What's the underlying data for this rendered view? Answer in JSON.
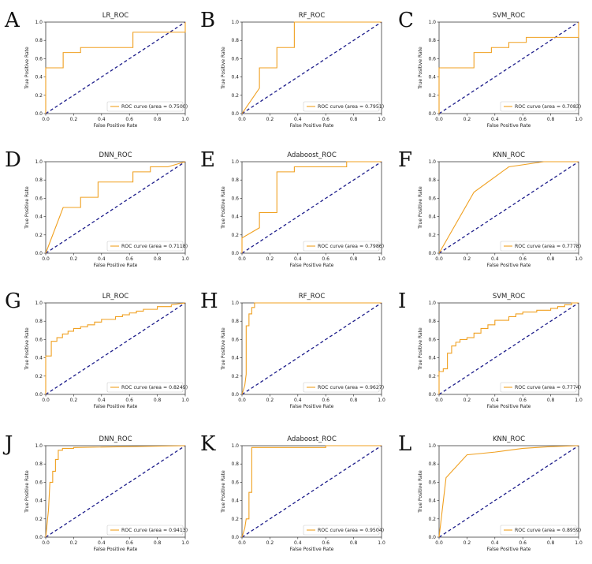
{
  "chart_data": [
    {
      "panel": "A",
      "type": "line",
      "title": "LR_ROC",
      "xlabel": "False Positive Rate",
      "ylabel": "True Positive Rate",
      "xlim": [
        0,
        1
      ],
      "ylim": [
        0,
        1
      ],
      "legend": "ROC curve (area = 0.7500)",
      "legend_position": "lower-right",
      "x": [
        0,
        0,
        0.125,
        0.125,
        0.25,
        0.25,
        0.625,
        0.625,
        1,
        1
      ],
      "y": [
        0,
        0.5,
        0.5,
        0.667,
        0.667,
        0.722,
        0.722,
        0.889,
        0.889,
        1
      ]
    },
    {
      "panel": "B",
      "type": "line",
      "title": "RF_ROC",
      "xlabel": "False Positive Rate",
      "ylabel": "True Positive Rate",
      "xlim": [
        0,
        1
      ],
      "ylim": [
        0,
        1
      ],
      "legend": "ROC curve (area = 0.7951)",
      "legend_position": "lower-right",
      "x": [
        0,
        0.125,
        0.125,
        0.25,
        0.25,
        0.375,
        0.375,
        1
      ],
      "y": [
        0,
        0.278,
        0.5,
        0.5,
        0.722,
        0.722,
        1,
        1
      ]
    },
    {
      "panel": "C",
      "type": "line",
      "title": "SVM_ROC",
      "xlabel": "False Positive Rate",
      "ylabel": "True Positive Rate",
      "xlim": [
        0,
        1
      ],
      "ylim": [
        0,
        1
      ],
      "legend": "ROC curve (area = 0.7083)",
      "legend_position": "lower-right",
      "x": [
        0,
        0,
        0.25,
        0.25,
        0.375,
        0.375,
        0.5,
        0.5,
        0.625,
        0.625,
        1,
        1
      ],
      "y": [
        0,
        0.5,
        0.5,
        0.667,
        0.667,
        0.722,
        0.722,
        0.778,
        0.778,
        0.833,
        0.833,
        1
      ]
    },
    {
      "panel": "D",
      "type": "line",
      "title": "DNN_ROC",
      "xlabel": "False Positive Rate",
      "ylabel": "True Positive Rate",
      "xlim": [
        0,
        1
      ],
      "ylim": [
        0,
        1
      ],
      "legend": "ROC curve (area = 0.7118)",
      "legend_position": "lower-right",
      "x": [
        0,
        0.125,
        0.25,
        0.25,
        0.375,
        0.375,
        0.625,
        0.625,
        0.75,
        0.75,
        0.875,
        0.875,
        1
      ],
      "y": [
        0,
        0.5,
        0.5,
        0.611,
        0.611,
        0.778,
        0.778,
        0.889,
        0.889,
        0.944,
        0.944,
        0.944,
        1
      ]
    },
    {
      "panel": "E",
      "type": "line",
      "title": "Adaboost_ROC",
      "xlabel": "False Positive Rate",
      "ylabel": "True Positive Rate",
      "xlim": [
        0,
        1
      ],
      "ylim": [
        0,
        1
      ],
      "legend": "ROC curve (area = 0.7986)",
      "legend_position": "lower-right",
      "x": [
        0,
        0,
        0.125,
        0.125,
        0.25,
        0.25,
        0.375,
        0.375,
        0.75,
        0.75,
        1
      ],
      "y": [
        0,
        0.167,
        0.278,
        0.444,
        0.444,
        0.889,
        0.889,
        0.944,
        0.944,
        1,
        1
      ]
    },
    {
      "panel": "F",
      "type": "line",
      "title": "KNN_ROC",
      "xlabel": "False Positive Rate",
      "ylabel": "True Positive Rate",
      "xlim": [
        0,
        1
      ],
      "ylim": [
        0,
        1
      ],
      "legend": "ROC curve (area = 0.7778)",
      "legend_position": "lower-right",
      "x": [
        0,
        0.25,
        0.5,
        0.75,
        1
      ],
      "y": [
        0,
        0.667,
        0.944,
        1,
        1
      ]
    },
    {
      "panel": "G",
      "type": "line",
      "title": "LR_ROC",
      "xlabel": "False Positive Rate",
      "ylabel": "True Positive Rate",
      "xlim": [
        0,
        1
      ],
      "ylim": [
        0,
        1
      ],
      "legend": "ROC curve (area = 0.8249)",
      "legend_position": "lower-right",
      "x": [
        0,
        0,
        0.04,
        0.04,
        0.08,
        0.08,
        0.12,
        0.12,
        0.16,
        0.16,
        0.2,
        0.2,
        0.25,
        0.25,
        0.3,
        0.3,
        0.35,
        0.35,
        0.4,
        0.4,
        0.5,
        0.5,
        0.55,
        0.55,
        0.6,
        0.6,
        0.65,
        0.65,
        0.7,
        0.7,
        0.8,
        0.8,
        0.9,
        0.9,
        1
      ],
      "y": [
        0,
        0.42,
        0.42,
        0.58,
        0.58,
        0.62,
        0.62,
        0.66,
        0.66,
        0.69,
        0.69,
        0.72,
        0.72,
        0.74,
        0.74,
        0.76,
        0.76,
        0.79,
        0.79,
        0.82,
        0.82,
        0.85,
        0.85,
        0.87,
        0.87,
        0.89,
        0.89,
        0.91,
        0.91,
        0.93,
        0.93,
        0.96,
        0.96,
        0.98,
        1
      ]
    },
    {
      "panel": "H",
      "type": "line",
      "title": "RF_ROC",
      "xlabel": "False Positive Rate",
      "ylabel": "True Positive Rate",
      "xlim": [
        0,
        1
      ],
      "ylim": [
        0,
        1
      ],
      "legend": "ROC curve (area = 0.9627)",
      "legend_position": "lower-right",
      "x": [
        0,
        0.02,
        0.03,
        0.03,
        0.05,
        0.05,
        0.07,
        0.07,
        0.09,
        0.09,
        1
      ],
      "y": [
        0,
        0.1,
        0.22,
        0.75,
        0.75,
        0.88,
        0.88,
        0.95,
        0.95,
        1,
        1
      ]
    },
    {
      "panel": "I",
      "type": "line",
      "title": "SVM_ROC",
      "xlabel": "False Positive Rate",
      "ylabel": "True Positive Rate",
      "xlim": [
        0,
        1
      ],
      "ylim": [
        0,
        1
      ],
      "legend": "ROC curve (area = 0.7774)",
      "legend_position": "lower-right",
      "x": [
        0,
        0,
        0.03,
        0.03,
        0.06,
        0.06,
        0.09,
        0.09,
        0.12,
        0.12,
        0.15,
        0.15,
        0.2,
        0.2,
        0.25,
        0.25,
        0.3,
        0.3,
        0.35,
        0.35,
        0.4,
        0.4,
        0.5,
        0.5,
        0.55,
        0.55,
        0.6,
        0.6,
        0.7,
        0.7,
        0.8,
        0.8,
        0.85,
        0.85,
        0.9,
        0.9,
        0.95,
        0.95,
        1
      ],
      "y": [
        0,
        0.25,
        0.25,
        0.28,
        0.28,
        0.45,
        0.45,
        0.53,
        0.53,
        0.57,
        0.57,
        0.6,
        0.6,
        0.62,
        0.62,
        0.67,
        0.67,
        0.72,
        0.72,
        0.76,
        0.76,
        0.81,
        0.81,
        0.85,
        0.85,
        0.88,
        0.88,
        0.9,
        0.9,
        0.92,
        0.92,
        0.94,
        0.94,
        0.96,
        0.96,
        0.98,
        0.98,
        1,
        1
      ]
    },
    {
      "panel": "J",
      "type": "line",
      "title": "DNN_ROC",
      "xlabel": "False Positive Rate",
      "ylabel": "True Positive Rate",
      "xlim": [
        0,
        1
      ],
      "ylim": [
        0,
        1
      ],
      "legend": "ROC curve (area = 0.9413)",
      "legend_position": "lower-right",
      "x": [
        0,
        0.02,
        0.03,
        0.03,
        0.05,
        0.05,
        0.07,
        0.07,
        0.09,
        0.09,
        0.12,
        0.12,
        0.2,
        0.2,
        1
      ],
      "y": [
        0,
        0.3,
        0.6,
        0.6,
        0.6,
        0.72,
        0.72,
        0.85,
        0.85,
        0.95,
        0.95,
        0.97,
        0.97,
        0.98,
        1
      ]
    },
    {
      "panel": "K",
      "type": "line",
      "title": "Adaboost_ROC",
      "xlabel": "False Positive Rate",
      "ylabel": "True Positive Rate",
      "xlim": [
        0,
        1
      ],
      "ylim": [
        0,
        1
      ],
      "legend": "ROC curve (area = 0.9504)",
      "legend_position": "lower-right",
      "x": [
        0,
        0.02,
        0.03,
        0.03,
        0.05,
        0.05,
        0.07,
        0.07,
        0.6,
        0.6,
        1
      ],
      "y": [
        0,
        0.1,
        0.2,
        0.2,
        0.2,
        0.49,
        0.49,
        0.98,
        0.98,
        1,
        1
      ]
    },
    {
      "panel": "L",
      "type": "line",
      "title": "KNN_ROC",
      "xlabel": "False Positive Rate",
      "ylabel": "True Positive Rate",
      "xlim": [
        0,
        1
      ],
      "ylim": [
        0,
        1
      ],
      "legend": "ROC curve (area = 0.8959)",
      "legend_position": "lower-right",
      "x": [
        0,
        0.05,
        0.2,
        0.4,
        0.6,
        0.8,
        1
      ],
      "y": [
        0,
        0.65,
        0.9,
        0.93,
        0.97,
        0.99,
        1
      ]
    }
  ],
  "ticks": {
    "x": [
      "0.0",
      "0.2",
      "0.4",
      "0.6",
      "0.8",
      "1.0"
    ],
    "y": [
      "0.0",
      "0.2",
      "0.4",
      "0.6",
      "0.8",
      "1.0"
    ]
  },
  "colors": {
    "curve": "#f0a020",
    "diagonal": "#1c1c8a",
    "axis": "#222222"
  }
}
